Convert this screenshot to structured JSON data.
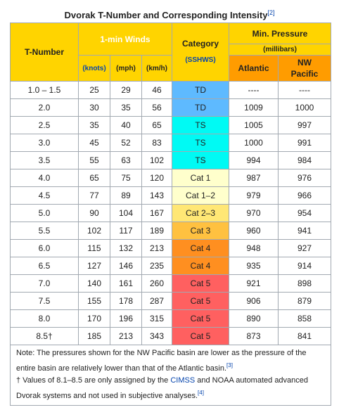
{
  "caption": {
    "title": "Dvorak T-Number and Corresponding Intensity",
    "ref": "[2]"
  },
  "header": {
    "tnumber": "T-Number",
    "winds": "1-min Winds",
    "knots": "(knots)",
    "mph": "(mph)",
    "kmh": "(km/h)",
    "category": "Category",
    "sshws": "(SSHWS)",
    "min_pressure": "Min. Pressure",
    "millibars": "(millibars)",
    "atlantic": "Atlantic",
    "nw": "NW",
    "pacific": "Pacific"
  },
  "rows": [
    {
      "t": "1.0 – 1.5",
      "knots": "25",
      "mph": "29",
      "kmh": "46",
      "cat": "TD",
      "atl": "----",
      "nwp": "----"
    },
    {
      "t": "2.0",
      "knots": "30",
      "mph": "35",
      "kmh": "56",
      "cat": "TD",
      "atl": "1009",
      "nwp": "1000"
    },
    {
      "t": "2.5",
      "knots": "35",
      "mph": "40",
      "kmh": "65",
      "cat": "TS",
      "atl": "1005",
      "nwp": "997"
    },
    {
      "t": "3.0",
      "knots": "45",
      "mph": "52",
      "kmh": "83",
      "cat": "TS",
      "atl": "1000",
      "nwp": "991"
    },
    {
      "t": "3.5",
      "knots": "55",
      "mph": "63",
      "kmh": "102",
      "cat": "TS",
      "atl": "994",
      "nwp": "984"
    },
    {
      "t": "4.0",
      "knots": "65",
      "mph": "75",
      "kmh": "120",
      "cat": "Cat 1",
      "atl": "987",
      "nwp": "976"
    },
    {
      "t": "4.5",
      "knots": "77",
      "mph": "89",
      "kmh": "143",
      "cat": "Cat 1–2",
      "atl": "979",
      "nwp": "966"
    },
    {
      "t": "5.0",
      "knots": "90",
      "mph": "104",
      "kmh": "167",
      "cat": "Cat 2–3",
      "atl": "970",
      "nwp": "954"
    },
    {
      "t": "5.5",
      "knots": "102",
      "mph": "117",
      "kmh": "189",
      "cat": "Cat 3",
      "atl": "960",
      "nwp": "941"
    },
    {
      "t": "6.0",
      "knots": "115",
      "mph": "132",
      "kmh": "213",
      "cat": "Cat 4",
      "atl": "948",
      "nwp": "927"
    },
    {
      "t": "6.5",
      "knots": "127",
      "mph": "146",
      "kmh": "235",
      "cat": "Cat 4",
      "atl": "935",
      "nwp": "914"
    },
    {
      "t": "7.0",
      "knots": "140",
      "mph": "161",
      "kmh": "260",
      "cat": "Cat 5",
      "atl": "921",
      "nwp": "898"
    },
    {
      "t": "7.5",
      "knots": "155",
      "mph": "178",
      "kmh": "287",
      "cat": "Cat 5",
      "atl": "906",
      "nwp": "879"
    },
    {
      "t": "8.0",
      "knots": "170",
      "mph": "196",
      "kmh": "315",
      "cat": "Cat 5",
      "atl": "890",
      "nwp": "858"
    },
    {
      "t": "8.5†",
      "knots": "185",
      "mph": "213",
      "kmh": "343",
      "cat": "Cat 5",
      "atl": "873",
      "nwp": "841"
    }
  ],
  "notes": {
    "note1": "Note: The pressures shown for the NW Pacific basin are lower as the pressure of the entire basin are relatively lower than that of the Atlantic basin.",
    "note1_ref": "[3]",
    "note2_pre": "† Values of 8.1–8.5 are only assigned by the ",
    "note2_link": "CIMSS",
    "note2_post": " and NOAA automated advanced Dvorak systems and not used in subjective analyses.",
    "note2_ref": "[4]"
  },
  "colors": {
    "header_yellow": "#ffd400",
    "header_orange": "#ff9c00",
    "TD": "#5ebaff",
    "TS": "#00faf4",
    "Cat 1": "#ffffcc",
    "Cat 1–2": "#ffffcc",
    "Cat 2–3": "#ffe775",
    "Cat 3": "#ffc140",
    "Cat 4": "#ff8f20",
    "Cat 5": "#ff6060",
    "link": "#0645ad"
  }
}
